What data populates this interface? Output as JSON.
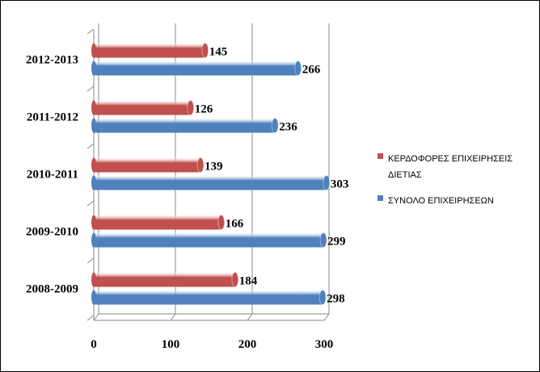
{
  "chart_data": {
    "type": "bar",
    "orientation": "horizontal",
    "categories": [
      "2008-2009",
      "2009-2010",
      "2010-2011",
      "2011-2012",
      "2012-2013"
    ],
    "series": [
      {
        "name": "ΚΕΡΔΟΦΟΡΕΣ ΕΠΙΧΕΙΡΗΣΕΙΣ ΔΙΕΤΙΑΣ",
        "color": "#c0504d",
        "values": [
          184,
          166,
          139,
          126,
          145
        ]
      },
      {
        "name": "ΣΥΝΟΛΟ ΕΠΙΧΕΙΡΗΣΕΩΝ",
        "color": "#4f81bd",
        "values": [
          298,
          299,
          303,
          236,
          266
        ]
      }
    ],
    "xlim": [
      0,
      300
    ],
    "xticks": [
      0,
      100,
      200,
      300
    ],
    "grid": true,
    "legend": "right"
  }
}
